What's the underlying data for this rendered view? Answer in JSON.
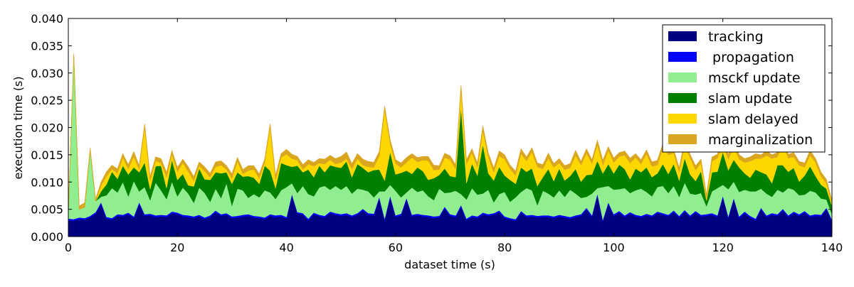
{
  "chart_data": {
    "type": "area",
    "stacked": true,
    "xlabel": "dataset time (s)",
    "ylabel": "execution time (s)",
    "xlim": [
      0,
      140
    ],
    "ylim": [
      0,
      0.04
    ],
    "xticks": [
      "0",
      "20",
      "40",
      "60",
      "80",
      "100",
      "120",
      "140"
    ],
    "yticks": [
      "0.000",
      "0.005",
      "0.010",
      "0.015",
      "0.020",
      "0.025",
      "0.030",
      "0.035",
      "0.040"
    ],
    "grid": false,
    "legend_position": "top-right",
    "x_step": 1,
    "series": [
      {
        "name": "tracking",
        "color": "#000080",
        "values": [
          0.003,
          0.0029,
          0.0032,
          0.0031,
          0.0035,
          0.0042,
          0.006,
          0.0033,
          0.0031,
          0.0038,
          0.0037,
          0.0041,
          0.0034,
          0.006,
          0.0038,
          0.0039,
          0.0036,
          0.0037,
          0.0036,
          0.0043,
          0.0041,
          0.0037,
          0.0036,
          0.0034,
          0.0037,
          0.0032,
          0.0036,
          0.0045,
          0.0038,
          0.004,
          0.0034,
          0.0035,
          0.0037,
          0.0038,
          0.0035,
          0.0034,
          0.0032,
          0.0038,
          0.0036,
          0.0037,
          0.0033,
          0.0075,
          0.0042,
          0.004,
          0.003,
          0.0041,
          0.0037,
          0.0035,
          0.0043,
          0.004,
          0.0038,
          0.004,
          0.0036,
          0.004,
          0.0048,
          0.004,
          0.0039,
          0.007,
          0.003,
          0.0072,
          0.0036,
          0.0039,
          0.0068,
          0.0037,
          0.0039,
          0.0037,
          0.0036,
          0.0034,
          0.0035,
          0.0052,
          0.0038,
          0.0036,
          0.0055,
          0.003,
          0.0036,
          0.0034,
          0.0041,
          0.0038,
          0.004,
          0.0045,
          0.0034,
          0.0031,
          0.0029,
          0.0044,
          0.0036,
          0.0037,
          0.0035,
          0.0036,
          0.0036,
          0.0034,
          0.0037,
          0.0035,
          0.0033,
          0.0036,
          0.0038,
          0.005,
          0.0036,
          0.0076,
          0.0028,
          0.006,
          0.0038,
          0.0044,
          0.0036,
          0.0042,
          0.0037,
          0.0035,
          0.0039,
          0.0036,
          0.0043,
          0.004,
          0.0037,
          0.0045,
          0.0035,
          0.0046,
          0.0036,
          0.0044,
          0.0037,
          0.0038,
          0.004,
          0.0036,
          0.0072,
          0.0034,
          0.0068,
          0.0034,
          0.0043,
          0.0035,
          0.003,
          0.005,
          0.0036,
          0.004,
          0.0038,
          0.0048,
          0.0036,
          0.0043,
          0.0038,
          0.0044,
          0.0036,
          0.0038,
          0.0037,
          0.005,
          0.0028
        ]
      },
      {
        "name": " propagation",
        "color": "#0000ff",
        "values": [
          0.0003,
          0.0003,
          0.0003,
          0.0003,
          0.0003,
          0.0003,
          0.0003,
          0.0003,
          0.0003,
          0.0003,
          0.0003,
          0.0003,
          0.0003,
          0.0003,
          0.0003,
          0.0003,
          0.0003,
          0.0003,
          0.0003,
          0.0003,
          0.0003,
          0.0003,
          0.0003,
          0.0003,
          0.0003,
          0.0003,
          0.0003,
          0.0003,
          0.0003,
          0.0003,
          0.0003,
          0.0003,
          0.0003,
          0.0003,
          0.0003,
          0.0003,
          0.0003,
          0.0003,
          0.0003,
          0.0003,
          0.0003,
          0.0003,
          0.0003,
          0.0003,
          0.0003,
          0.0003,
          0.0003,
          0.0003,
          0.0003,
          0.0003,
          0.0003,
          0.0003,
          0.0003,
          0.0003,
          0.0003,
          0.0003,
          0.0003,
          0.0003,
          0.0003,
          0.0003,
          0.0003,
          0.0003,
          0.0003,
          0.0003,
          0.0003,
          0.0003,
          0.0003,
          0.0003,
          0.0003,
          0.0003,
          0.0003,
          0.0003,
          0.0003,
          0.0003,
          0.0003,
          0.0003,
          0.0003,
          0.0003,
          0.0003,
          0.0003,
          0.0003,
          0.0003,
          0.0003,
          0.0003,
          0.0003,
          0.0003,
          0.0003,
          0.0003,
          0.0003,
          0.0003,
          0.0003,
          0.0003,
          0.0003,
          0.0003,
          0.0003,
          0.0003,
          0.0003,
          0.0003,
          0.0003,
          0.0003,
          0.0003,
          0.0003,
          0.0003,
          0.0003,
          0.0003,
          0.0003,
          0.0003,
          0.0003,
          0.0003,
          0.0003,
          0.0003,
          0.0003,
          0.0003,
          0.0003,
          0.0003,
          0.0003,
          0.0003,
          0.0003,
          0.0003,
          0.0003,
          0.0003,
          0.0003,
          0.0003,
          0.0003,
          0.0003,
          0.0003,
          0.0003,
          0.0003,
          0.0003,
          0.0003,
          0.0003,
          0.0003,
          0.0003,
          0.0003,
          0.0003,
          0.0003,
          0.0003,
          0.0003,
          0.0003,
          0.0003,
          0.0003
        ]
      },
      {
        "name": "msckf update",
        "color": "#90ee90",
        "values": [
          0.001,
          0.03,
          0.0015,
          0.002,
          0.012,
          0.002,
          0.001,
          0.004,
          0.0055,
          0.004,
          0.006,
          0.003,
          0.0065,
          0.002,
          0.005,
          0.0025,
          0.006,
          0.0045,
          0.003,
          0.0055,
          0.003,
          0.005,
          0.004,
          0.0025,
          0.005,
          0.0045,
          0.0025,
          0.004,
          0.003,
          0.0055,
          0.002,
          0.005,
          0.0045,
          0.003,
          0.004,
          0.0035,
          0.005,
          0.004,
          0.003,
          0.0045,
          0.0055,
          0.002,
          0.0035,
          0.005,
          0.0045,
          0.003,
          0.005,
          0.0055,
          0.004,
          0.005,
          0.0045,
          0.005,
          0.004,
          0.0045,
          0.0035,
          0.004,
          0.003,
          0.001,
          0.005,
          0.002,
          0.0045,
          0.003,
          0.001,
          0.005,
          0.004,
          0.0045,
          0.0035,
          0.003,
          0.005,
          0.0025,
          0.004,
          0.0045,
          0.002,
          0.0035,
          0.005,
          0.004,
          0.0035,
          0.0045,
          0.002,
          0.003,
          0.0045,
          0.003,
          0.004,
          0.0035,
          0.005,
          0.0045,
          0.002,
          0.0045,
          0.004,
          0.0035,
          0.0045,
          0.0035,
          0.005,
          0.004,
          0.003,
          0.002,
          0.004,
          0.001,
          0.006,
          0.003,
          0.0045,
          0.004,
          0.005,
          0.0035,
          0.0045,
          0.005,
          0.004,
          0.0035,
          0.0045,
          0.005,
          0.004,
          0.0045,
          0.0035,
          0.005,
          0.004,
          0.003,
          0.004,
          0.0015,
          0.004,
          0.005,
          0.002,
          0.005,
          0.003,
          0.0045,
          0.004,
          0.0045,
          0.005,
          0.0035,
          0.004,
          0.003,
          0.0045,
          0.003,
          0.005,
          0.004,
          0.0035,
          0.003,
          0.0045,
          0.004,
          0.003,
          0.0015,
          0.001
        ]
      },
      {
        "name": "slam update",
        "color": "#008000",
        "values": [
          0,
          0,
          0,
          0,
          0,
          0,
          0.001,
          0.002,
          0.003,
          0.0025,
          0.003,
          0.004,
          0.0025,
          0.0035,
          0.0045,
          0.002,
          0.003,
          0.0045,
          0.002,
          0.004,
          0.003,
          0.0025,
          0.0015,
          0.003,
          0.0035,
          0.0025,
          0.004,
          0.003,
          0.0045,
          0.002,
          0.004,
          0.003,
          0.0025,
          0.004,
          0.003,
          0.0025,
          0.0045,
          0.004,
          0.002,
          0.005,
          0.004,
          0.003,
          0.005,
          0.0025,
          0.0045,
          0.0035,
          0.004,
          0.0025,
          0.0045,
          0.0035,
          0.004,
          0.0045,
          0.003,
          0.0045,
          0.004,
          0.0035,
          0.005,
          0.004,
          0.002,
          0.006,
          0.003,
          0.0045,
          0.004,
          0.0025,
          0.0045,
          0.0035,
          0.003,
          0.004,
          0.0025,
          0.0045,
          0.003,
          0.0025,
          0.016,
          0.003,
          0.0045,
          0.0035,
          0.009,
          0.003,
          0.004,
          0.005,
          0.003,
          0.004,
          0.0025,
          0.0045,
          0.003,
          0.004,
          0.0035,
          0.0025,
          0.0045,
          0.003,
          0.004,
          0.003,
          0.0025,
          0.0045,
          0.003,
          0.004,
          0.0035,
          0.005,
          0.0025,
          0.004,
          0.003,
          0.0045,
          0.0035,
          0.0025,
          0.004,
          0.003,
          0.0045,
          0.0035,
          0.0025,
          0.004,
          0.0035,
          0.004,
          0.003,
          0.0045,
          0.0035,
          0.0025,
          0.004,
          0.001,
          0.0035,
          0.003,
          0.006,
          0.0035,
          0.004,
          0.0045,
          0.003,
          0.0025,
          0.004,
          0.003,
          0.0035,
          0.0025,
          0.0045,
          0.005,
          0.003,
          0.004,
          0.0025,
          0.0035,
          0.0045,
          0.003,
          0.0025,
          0.002,
          0.0015
        ]
      },
      {
        "name": "slam delayed",
        "color": "#ffd700",
        "values": [
          0,
          0,
          0,
          0,
          0,
          0,
          0.001,
          0.0015,
          0.0005,
          0.001,
          0.0015,
          0.001,
          0.002,
          0.0005,
          0.0065,
          0.0015,
          0.001,
          0.0005,
          0.002,
          0.001,
          0.0015,
          0.002,
          0.0025,
          0.001,
          0.0005,
          0.0015,
          0.0005,
          0.001,
          0.0015,
          0.0005,
          0.001,
          0.002,
          0.0005,
          0.001,
          0.0015,
          0.001,
          0.0005,
          0.008,
          0.0015,
          0.001,
          0.002,
          0.0015,
          0.001,
          0.0005,
          0.001,
          0.002,
          0.0005,
          0.0015,
          0.001,
          0.0005,
          0.001,
          0.0005,
          0.0015,
          0.001,
          0.0005,
          0.001,
          0.0005,
          0.0025,
          0.013,
          0.0015,
          0.002,
          0.001,
          0.0015,
          0.003,
          0.001,
          0.002,
          0.0035,
          0.0015,
          0.001,
          0.002,
          0.003,
          0.0015,
          0.003,
          0.0035,
          0.002,
          0.0015,
          0.0025,
          0.003,
          0.0015,
          0.002,
          0.003,
          0.002,
          0.0015,
          0.0025,
          0.002,
          0.003,
          0.0035,
          0.0015,
          0.002,
          0.0025,
          0.001,
          0.002,
          0.0015,
          0.0025,
          0.003,
          0.004,
          0.002,
          0.003,
          0.0015,
          0.0025,
          0.002,
          0.0015,
          0.0025,
          0.003,
          0.002,
          0.0015,
          0.0025,
          0.002,
          0.0015,
          0.003,
          0.0035,
          0.002,
          0.0015,
          0.0025,
          0.003,
          0.002,
          0.0015,
          0.0005,
          0.002,
          0.0025,
          0.0015,
          0.002,
          0.0025,
          0.0015,
          0.002,
          0.003,
          0.002,
          0.0025,
          0.0035,
          0.0045,
          0.0015,
          0.004,
          0.0025,
          0.002,
          0.003,
          0.0015,
          0.002,
          0.0025,
          0.0015,
          0.001,
          0.0005
        ]
      },
      {
        "name": "marginalization",
        "color": "#daa520",
        "values": [
          0.0005,
          0.0004,
          0.0006,
          0.0008,
          0.0005,
          0.0004,
          0.0007,
          0.0008,
          0.0007,
          0.0008,
          0.0007,
          0.0008,
          0.0009,
          0.0007,
          0.0006,
          0.0008,
          0.0007,
          0.0008,
          0.0009,
          0.0007,
          0.0008,
          0.0007,
          0.0009,
          0.0008,
          0.0007,
          0.0008,
          0.0007,
          0.0009,
          0.0008,
          0.0007,
          0.0008,
          0.0007,
          0.0008,
          0.0009,
          0.0007,
          0.0008,
          0.0007,
          0.0006,
          0.0008,
          0.0007,
          0.0009,
          0.0008,
          0.0007,
          0.0009,
          0.0008,
          0.0007,
          0.0008,
          0.0009,
          0.0008,
          0.001,
          0.0011,
          0.0012,
          0.001,
          0.0009,
          0.0011,
          0.001,
          0.0009,
          0.0008,
          0.0006,
          0.0008,
          0.0007,
          0.0008,
          0.0009,
          0.0007,
          0.0008,
          0.0007,
          0.0008,
          0.0009,
          0.0007,
          0.0008,
          0.0007,
          0.0008,
          0.001,
          0.0008,
          0.0007,
          0.0008,
          0.0009,
          0.0007,
          0.0008,
          0.0009,
          0.0008,
          0.0007,
          0.0008,
          0.0009,
          0.0007,
          0.0008,
          0.0007,
          0.0008,
          0.0009,
          0.0007,
          0.0008,
          0.0007,
          0.0008,
          0.0009,
          0.0007,
          0.0008,
          0.0007,
          0.0008,
          0.0009,
          0.0007,
          0.0008,
          0.0007,
          0.0008,
          0.0009,
          0.0007,
          0.0008,
          0.0007,
          0.0008,
          0.0009,
          0.0007,
          0.0008,
          0.0007,
          0.0008,
          0.0009,
          0.0007,
          0.0008,
          0.0007,
          0.0006,
          0.0008,
          0.0007,
          0.0008,
          0.0009,
          0.0007,
          0.0008,
          0.0007,
          0.0008,
          0.0009,
          0.0007,
          0.0008,
          0.0007,
          0.0008,
          0.0009,
          0.0007,
          0.0008,
          0.0007,
          0.0008,
          0.0009,
          0.0007,
          0.0008,
          0.0007,
          0.0005
        ]
      }
    ]
  }
}
